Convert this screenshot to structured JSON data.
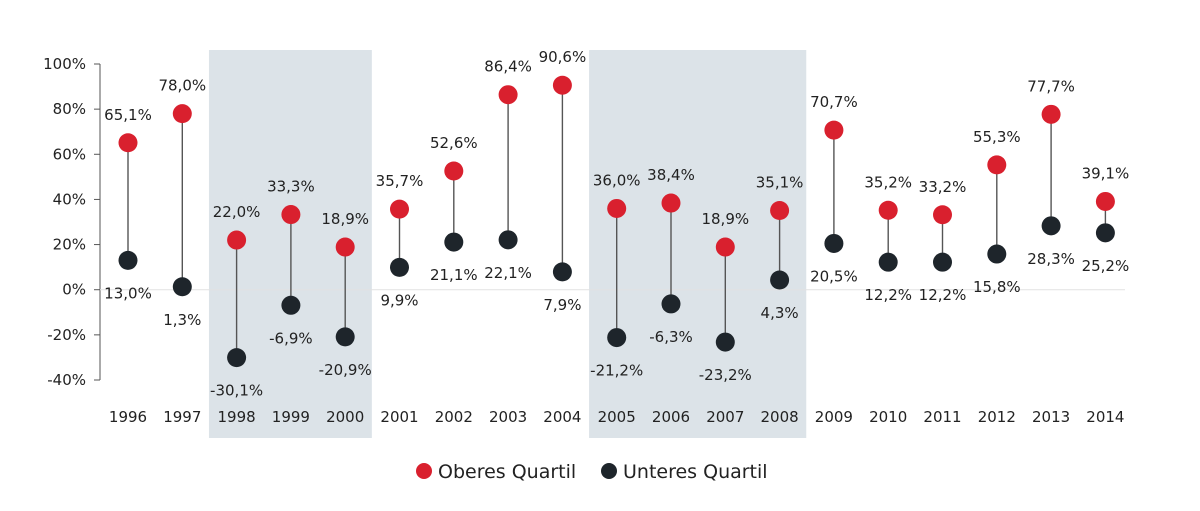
{
  "chart_data": {
    "type": "dot-range",
    "categories": [
      "1996",
      "1997",
      "1998",
      "1999",
      "2000",
      "2001",
      "2002",
      "2003",
      "2004",
      "2005",
      "2006",
      "2007",
      "2008",
      "2009",
      "2010",
      "2011",
      "2012",
      "2013",
      "2014"
    ],
    "series": [
      {
        "name": "Oberes Quartil",
        "color": "#d9202e",
        "values": [
          65.1,
          78.0,
          22.0,
          33.3,
          18.9,
          35.7,
          52.6,
          86.4,
          90.6,
          36.0,
          38.4,
          18.9,
          35.1,
          70.7,
          35.2,
          33.2,
          55.3,
          77.7,
          39.1
        ],
        "labels": [
          "65,1%",
          "78,0%",
          "22,0%",
          "33,3%",
          "18,9%",
          "35,7%",
          "52,6%",
          "86,4%",
          "90,6%",
          "36,0%",
          "38,4%",
          "18,9%",
          "35,1%",
          "70,7%",
          "35,2%",
          "33,2%",
          "55,3%",
          "77,7%",
          "39,1%"
        ]
      },
      {
        "name": "Unteres Quartil",
        "color": "#1e252b",
        "values": [
          13.0,
          1.3,
          -30.1,
          -6.9,
          -20.9,
          9.9,
          21.1,
          22.1,
          7.9,
          -21.2,
          -6.3,
          -23.2,
          4.3,
          20.5,
          12.2,
          12.2,
          15.8,
          28.3,
          25.2
        ],
        "labels": [
          "13,0%",
          "1,3%",
          "-30,1%",
          "-6,9%",
          "-20,9%",
          "9,9%",
          "21,1%",
          "22,1%",
          "7,9%",
          "-21,2%",
          "-6,3%",
          "-23,2%",
          "4,3%",
          "20,5%",
          "12,2%",
          "12,2%",
          "15,8%",
          "28,3%",
          "25,2%"
        ]
      }
    ],
    "ylim": [
      -40,
      100
    ],
    "yticks": [
      -40,
      -20,
      0,
      20,
      40,
      60,
      80,
      100
    ],
    "ytick_labels": [
      "-40%",
      "-20%",
      "0%",
      "20%",
      "40%",
      "60%",
      "80%",
      "100%"
    ],
    "shaded_ranges": [
      [
        "1998",
        "2000"
      ],
      [
        "2005",
        "2008"
      ]
    ],
    "shade_color": "#dce3e8",
    "legend_position": "bottom-center"
  }
}
